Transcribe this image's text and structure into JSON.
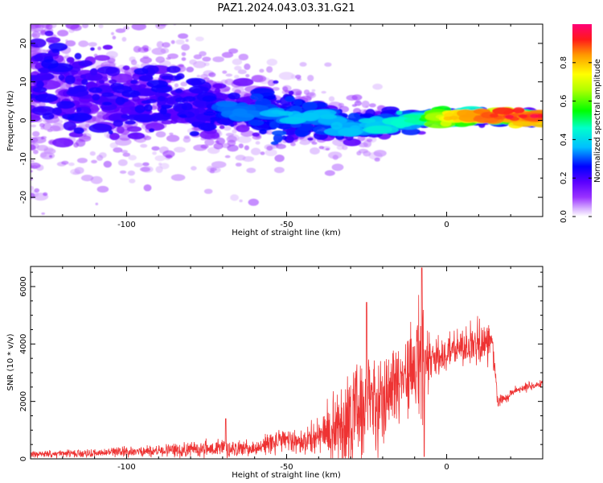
{
  "title": "PAZ1.2024.043.03.31.G21",
  "chart_data": [
    {
      "type": "heatmap",
      "xlabel": "Height of straight line (km)",
      "ylabel": "Frequency (Hz)",
      "xlim": [
        -130,
        30
      ],
      "ylim": [
        -25,
        25
      ],
      "x_ticks": [
        -100,
        -50,
        0
      ],
      "x_tick_labels": [
        "-100",
        "-50",
        "0"
      ],
      "y_ticks": [
        -20,
        -10,
        0,
        10,
        20
      ],
      "y_tick_labels": [
        "-20",
        "-10",
        "0",
        "10",
        "20"
      ],
      "colorbar": {
        "label": "Normalized spectral amplitude",
        "range": [
          0,
          1
        ],
        "ticks": [
          0.0,
          0.2,
          0.4,
          0.6,
          0.8
        ],
        "tick_labels": [
          "0.0",
          "0.2",
          "0.4",
          "0.6",
          "0.8"
        ],
        "colormap": [
          "#ffffff",
          "#d9b3ff",
          "#8000ff",
          "#0000ff",
          "#00e5ff",
          "#00ff00",
          "#ffff00",
          "#ff8000",
          "#ff0000",
          "#ff0080"
        ]
      },
      "ridge": {
        "description_points": [
          {
            "x": -130,
            "y": 10,
            "amp": 0.15
          },
          {
            "x": -110,
            "y": 6,
            "amp": 0.2
          },
          {
            "x": -90,
            "y": 5,
            "amp": 0.25
          },
          {
            "x": -75,
            "y": 3,
            "amp": 0.3
          },
          {
            "x": -60,
            "y": 2,
            "amp": 0.3
          },
          {
            "x": -50,
            "y": 1,
            "amp": 0.35
          },
          {
            "x": -40,
            "y": 1,
            "amp": 0.35
          },
          {
            "x": -30,
            "y": -2,
            "amp": 0.35
          },
          {
            "x": -20,
            "y": -1,
            "amp": 0.4
          },
          {
            "x": -10,
            "y": 0,
            "amp": 0.45
          },
          {
            "x": -5,
            "y": 1,
            "amp": 0.55
          },
          {
            "x": 0,
            "y": 0.5,
            "amp": 0.7
          },
          {
            "x": 10,
            "y": 1,
            "amp": 0.8
          },
          {
            "x": 20,
            "y": 1,
            "amp": 0.85
          },
          {
            "x": 30,
            "y": 1,
            "amp": 0.85
          }
        ]
      }
    },
    {
      "type": "line",
      "xlabel": "Height of straight line (km)",
      "ylabel": "SNR (10 * v/v)",
      "xlim": [
        -130,
        30
      ],
      "ylim": [
        0,
        6700
      ],
      "x_ticks": [
        -100,
        -50,
        0
      ],
      "x_tick_labels": [
        "-100",
        "-50",
        "0"
      ],
      "y_ticks": [
        0,
        2000,
        4000,
        6000
      ],
      "y_tick_labels": [
        "0",
        "2000",
        "4000",
        "6000"
      ],
      "color": "#ee3333",
      "envelope_x": [
        -130,
        -110,
        -90,
        -70,
        -60,
        -55,
        -50,
        -45,
        -40,
        -35,
        -30,
        -25,
        -20,
        -15,
        -10,
        -8,
        -5,
        0,
        5,
        10,
        14,
        16,
        18,
        20,
        25,
        30
      ],
      "envelope_mean": [
        150,
        200,
        280,
        380,
        350,
        550,
        650,
        600,
        750,
        1100,
        1500,
        1900,
        2200,
        2800,
        3200,
        3000,
        3400,
        3700,
        3900,
        4000,
        4100,
        2000,
        2100,
        2300,
        2500,
        2650
      ],
      "envelope_amp": [
        120,
        150,
        220,
        350,
        250,
        450,
        400,
        450,
        700,
        1300,
        1900,
        2100,
        1700,
        1500,
        1600,
        3000,
        900,
        700,
        800,
        900,
        700,
        300,
        250,
        200,
        150,
        120
      ]
    }
  ]
}
